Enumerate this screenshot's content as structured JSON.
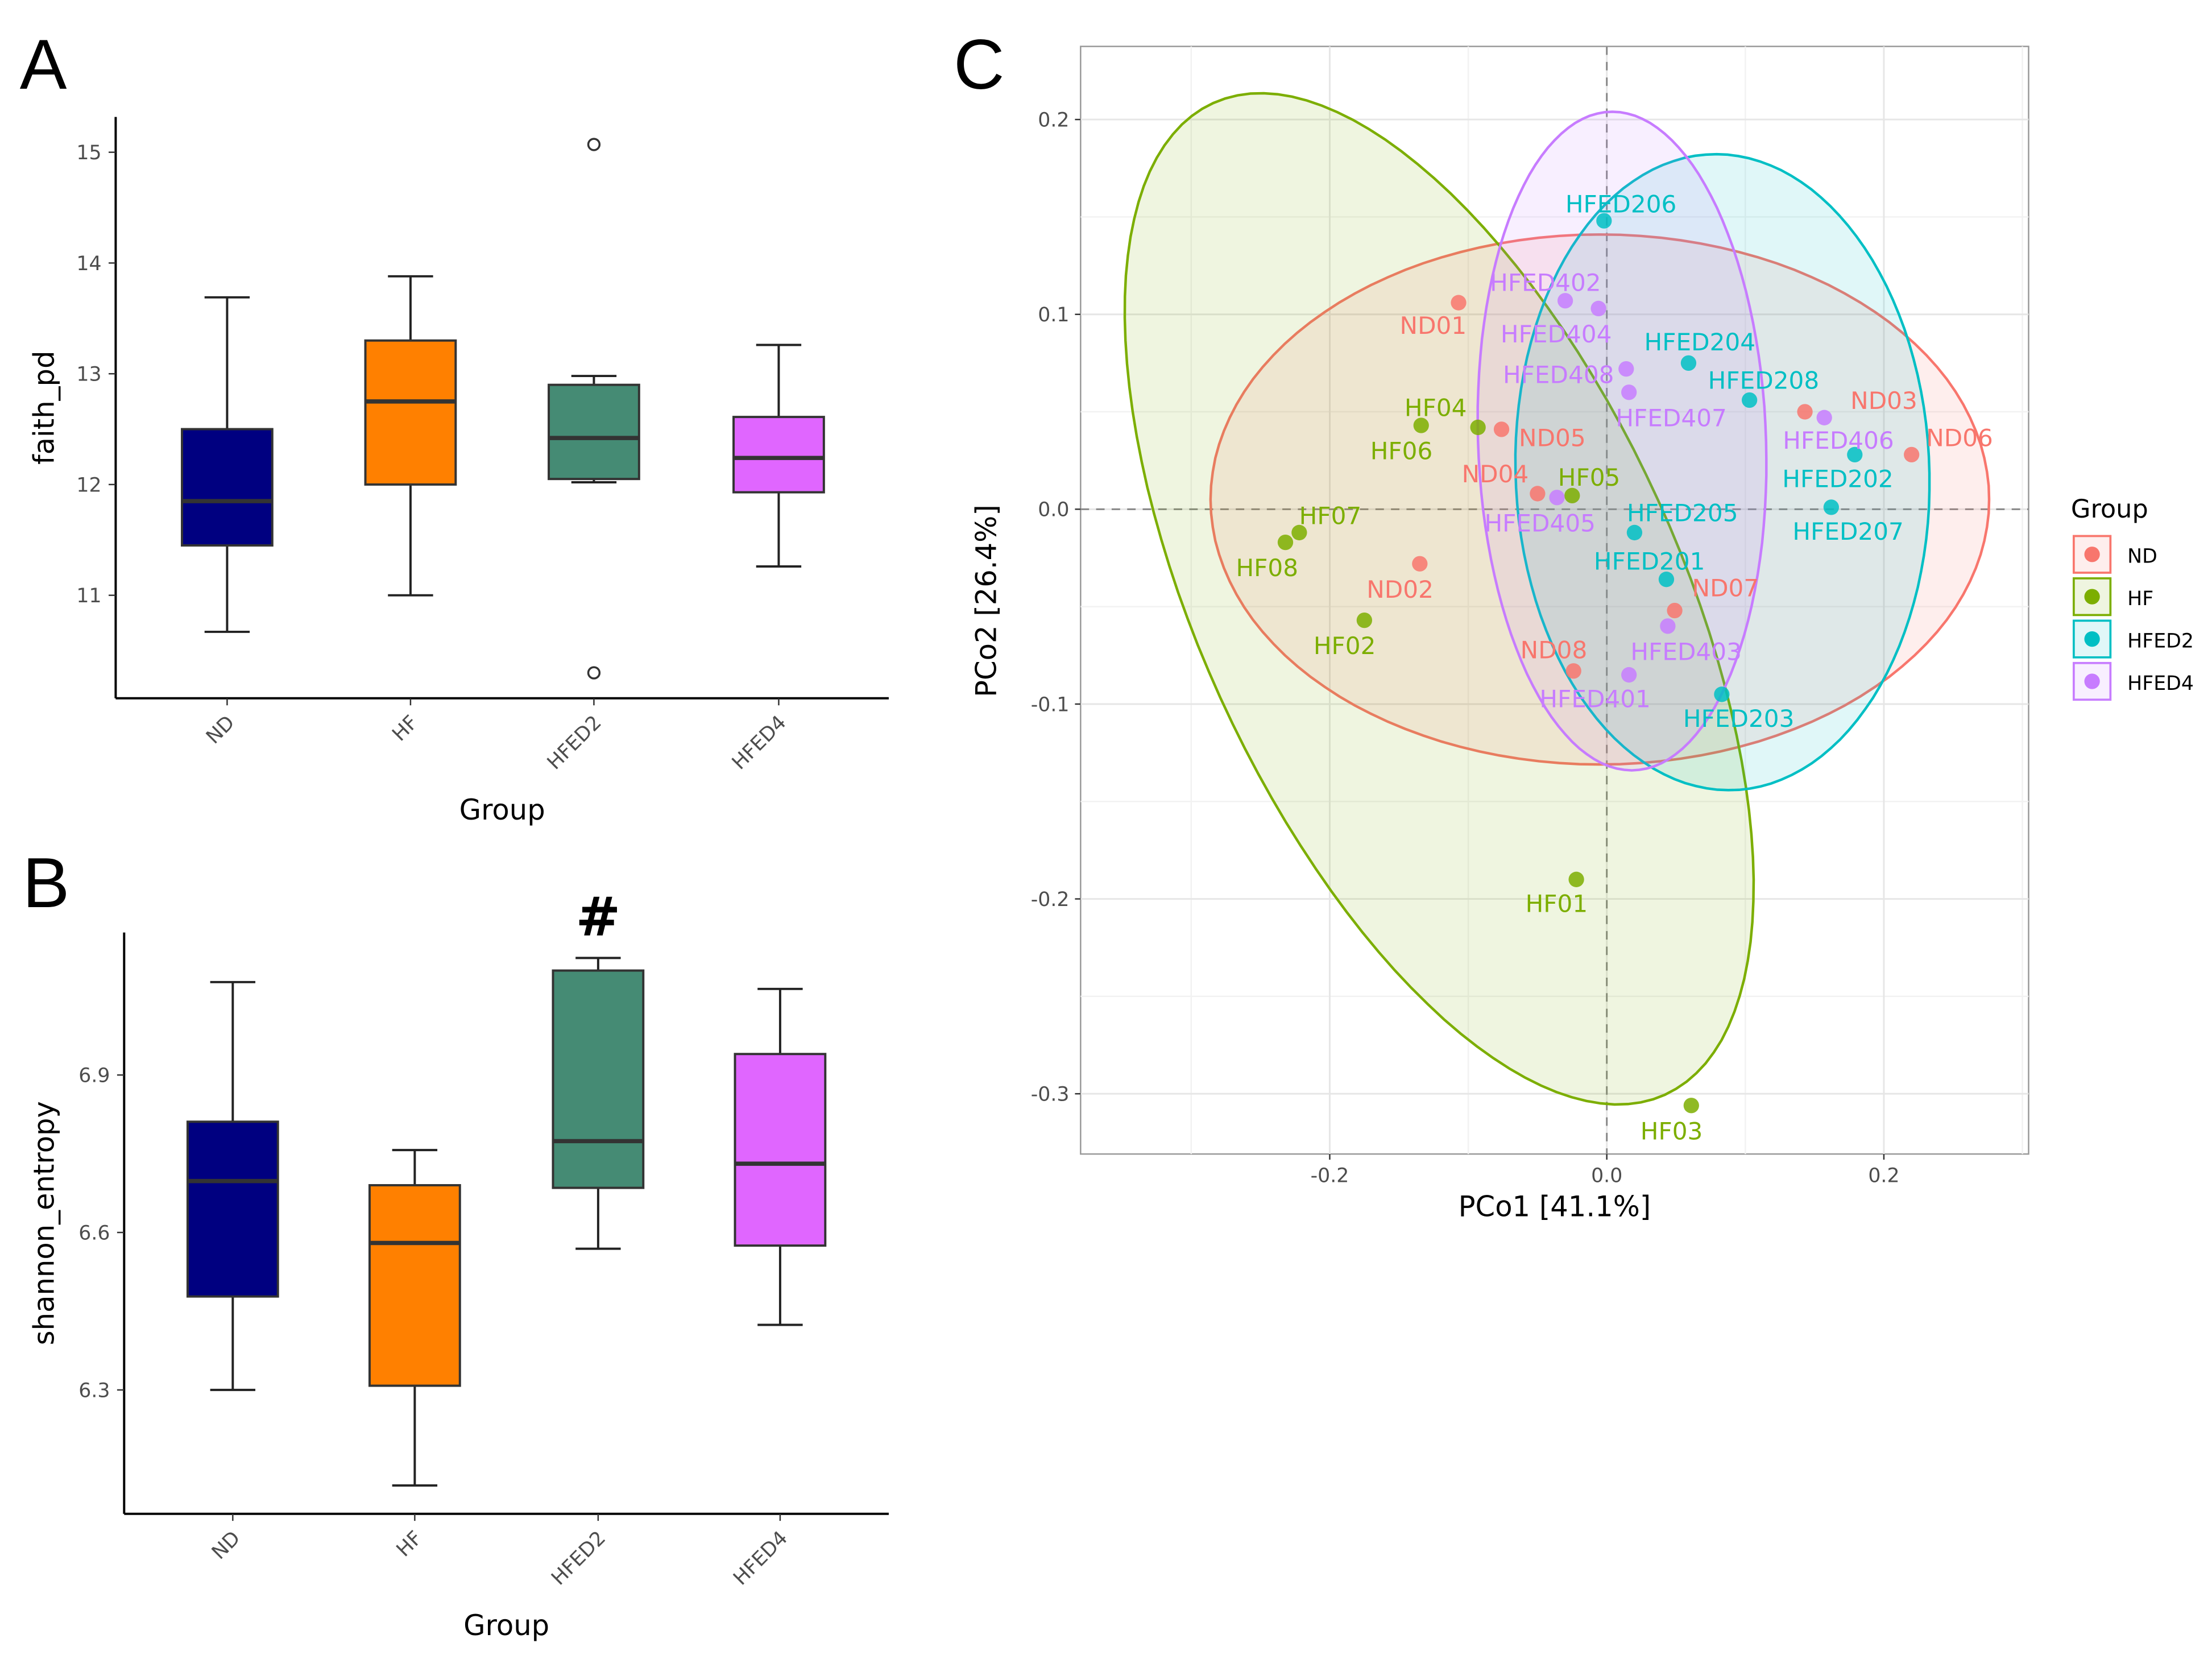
{
  "panels": {
    "a": "A",
    "b": "B",
    "c": "C"
  },
  "chart_data": [
    {
      "type": "box",
      "panel": "A",
      "xlabel": "Group",
      "ylabel": "faith_pd",
      "yticks": [
        11,
        12,
        13,
        14,
        15
      ],
      "categories": [
        "ND",
        "HF",
        "HFED2",
        "HFED4"
      ],
      "fill_colors": [
        "#000080",
        "#FF8000",
        "#458B74",
        "#E066FF"
      ],
      "boxes": [
        {
          "group": "ND",
          "whisker_low": 10.67,
          "q1": 11.45,
          "median": 11.85,
          "q3": 12.5,
          "whisker_high": 13.69,
          "outliers": []
        },
        {
          "group": "HF",
          "whisker_low": 11.0,
          "q1": 12.0,
          "median": 12.75,
          "q3": 13.3,
          "whisker_high": 13.88,
          "outliers": []
        },
        {
          "group": "HFED2",
          "whisker_low": 12.02,
          "q1": 12.05,
          "median": 12.42,
          "q3": 12.9,
          "whisker_high": 12.98,
          "outliers": [
            15.07,
            10.3
          ]
        },
        {
          "group": "HFED4",
          "whisker_low": 11.26,
          "q1": 11.93,
          "median": 12.24,
          "q3": 12.61,
          "whisker_high": 13.26,
          "outliers": []
        }
      ]
    },
    {
      "type": "box",
      "panel": "B",
      "xlabel": "Group",
      "ylabel": "shannon_entropy",
      "yticks": [
        6.3,
        6.6,
        6.9
      ],
      "ytick_labels": [
        "6.3",
        "6.6",
        "6.9"
      ],
      "categories": [
        "ND",
        "HF",
        "HFED2",
        "HFED4"
      ],
      "fill_colors": [
        "#000080",
        "#FF8000",
        "#458B74",
        "#E066FF"
      ],
      "annotation": {
        "group": "HFED2",
        "text": "#"
      },
      "boxes": [
        {
          "group": "ND",
          "whisker_low": 6.3,
          "q1": 6.478,
          "median": 6.698,
          "q3": 6.811,
          "whisker_high": 7.077,
          "outliers": []
        },
        {
          "group": "HF",
          "whisker_low": 6.118,
          "q1": 6.308,
          "median": 6.58,
          "q3": 6.69,
          "whisker_high": 6.757,
          "outliers": []
        },
        {
          "group": "HFED2",
          "whisker_low": 6.569,
          "q1": 6.685,
          "median": 6.774,
          "q3": 7.099,
          "whisker_high": 7.123,
          "outliers": []
        },
        {
          "group": "HFED4",
          "whisker_low": 6.424,
          "q1": 6.575,
          "median": 6.731,
          "q3": 6.94,
          "whisker_high": 7.064,
          "outliers": []
        }
      ]
    },
    {
      "type": "scatter",
      "panel": "C",
      "xlabel": "PCo1 [41.1%]",
      "ylabel": "PCo2 [26.4%]",
      "xticks": [
        -0.2,
        0.0,
        0.2
      ],
      "xtick_labels": [
        "-0.2",
        "0.0",
        "0.2"
      ],
      "yticks": [
        -0.3,
        -0.2,
        -0.1,
        0.0,
        0.1,
        0.2
      ],
      "ytick_labels": [
        "-0.3",
        "-0.2",
        "-0.1",
        "0.0",
        "0.1",
        "0.2"
      ],
      "xlim": [
        -0.38,
        0.305
      ],
      "ylim": [
        -0.33,
        0.238
      ],
      "grid": true,
      "legend": {
        "title": "Group",
        "placement": "right"
      },
      "series": [
        {
          "name": "ND",
          "color": "#F8766D",
          "ellipse": {
            "center": [
              -0.005,
              0.005
            ],
            "axis1": [
              0.281,
              0.0
            ],
            "axis2": [
              0.0,
              0.136
            ]
          },
          "points": [
            {
              "label": "ND01",
              "x": -0.107,
              "y": 0.106
            },
            {
              "label": "ND02",
              "x": -0.135,
              "y": -0.028
            },
            {
              "label": "ND03",
              "x": 0.143,
              "y": 0.05
            },
            {
              "label": "ND04",
              "x": -0.05,
              "y": 0.008
            },
            {
              "label": "ND05",
              "x": -0.076,
              "y": 0.041
            },
            {
              "label": "ND06",
              "x": 0.22,
              "y": 0.028
            },
            {
              "label": "ND07",
              "x": 0.049,
              "y": -0.052
            },
            {
              "label": "ND08",
              "x": -0.024,
              "y": -0.083
            }
          ]
        },
        {
          "name": "HF",
          "color": "#7CAE00",
          "ellipse": {
            "center": [
              -0.121,
              -0.046
            ],
            "axis1": [
              -0.163,
              0.2545
            ],
            "axis2": [
              0.158,
              0.0507
            ]
          },
          "points": [
            {
              "label": "HF01",
              "x": -0.022,
              "y": -0.19
            },
            {
              "label": "HF02",
              "x": -0.175,
              "y": -0.057
            },
            {
              "label": "HF03",
              "x": 0.061,
              "y": -0.306
            },
            {
              "label": "HF04",
              "x": -0.093,
              "y": 0.042
            },
            {
              "label": "HF05",
              "x": -0.025,
              "y": 0.007
            },
            {
              "label": "HF06",
              "x": -0.134,
              "y": 0.043
            },
            {
              "label": "HF07",
              "x": -0.222,
              "y": -0.012
            },
            {
              "label": "HF08",
              "x": -0.232,
              "y": -0.017
            }
          ]
        },
        {
          "name": "HFED2",
          "color": "#00BFC4",
          "ellipse": {
            "center": [
              0.0835,
              0.019
            ],
            "axis1": [
              -0.012,
              0.163
            ],
            "axis2": [
              0.149,
              0.008
            ]
          },
          "points": [
            {
              "label": "HFED201",
              "x": 0.043,
              "y": -0.036
            },
            {
              "label": "HFED202",
              "x": 0.179,
              "y": 0.028
            },
            {
              "label": "HFED203",
              "x": 0.083,
              "y": -0.095
            },
            {
              "label": "HFED204",
              "x": 0.059,
              "y": 0.075
            },
            {
              "label": "HFED205",
              "x": 0.02,
              "y": -0.012
            },
            {
              "label": "HFED206",
              "x": -0.002,
              "y": 0.148
            },
            {
              "label": "HFED207",
              "x": 0.162,
              "y": 0.001
            },
            {
              "label": "HFED208",
              "x": 0.103,
              "y": 0.056
            }
          ]
        },
        {
          "name": "HFED4",
          "color": "#C77CFF",
          "ellipse": {
            "center": [
              0.011,
              0.035
            ],
            "axis1": [
              -0.007,
              0.169
            ],
            "axis2": [
              0.104,
              0.0
            ]
          },
          "points": [
            {
              "label": "HFED401",
              "x": 0.016,
              "y": -0.085
            },
            {
              "label": "HFED402",
              "x": -0.03,
              "y": 0.107
            },
            {
              "label": "HFED403",
              "x": 0.044,
              "y": -0.06
            },
            {
              "label": "HFED404",
              "x": -0.006,
              "y": 0.103
            },
            {
              "label": "HFED405",
              "x": -0.036,
              "y": 0.006
            },
            {
              "label": "HFED406",
              "x": 0.157,
              "y": 0.047
            },
            {
              "label": "HFED407",
              "x": 0.016,
              "y": 0.06
            },
            {
              "label": "HFED408",
              "x": 0.014,
              "y": 0.072
            }
          ]
        }
      ]
    }
  ]
}
